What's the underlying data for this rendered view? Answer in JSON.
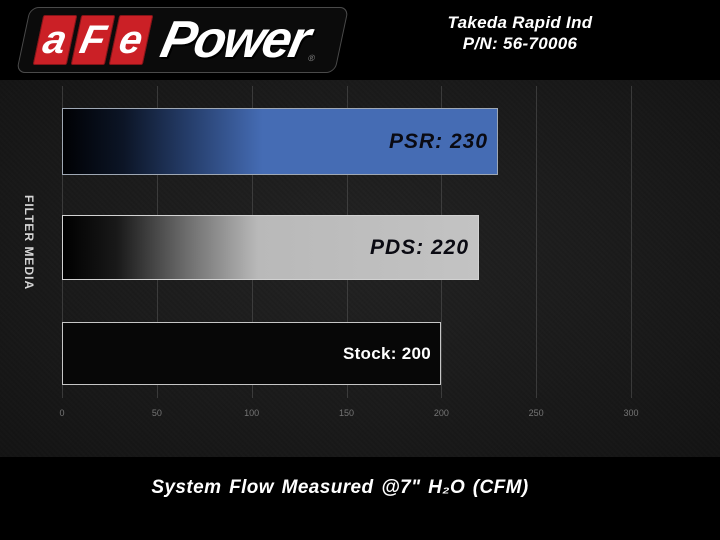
{
  "header": {
    "logo": {
      "letters": [
        "a",
        "F",
        "e"
      ],
      "wordmark": "Power",
      "registered": "®"
    },
    "product": {
      "line1": "Takeda Rapid Ind",
      "line2": "P/N: 56-70006"
    }
  },
  "chart": {
    "y_axis_label": "FILTER MEDIA",
    "caption": "System Flow Measured @7\" H₂O (CFM)"
  },
  "chart_data": {
    "type": "bar",
    "orientation": "horizontal",
    "title": "",
    "categories": [
      "PSR",
      "PDS",
      "Stock"
    ],
    "values": [
      230,
      220,
      200
    ],
    "bar_labels": [
      "PSR: 230",
      "PDS: 220",
      "Stock: 200"
    ],
    "bar_colors": [
      "#456cb4",
      "#b9b9b9",
      "#070707"
    ],
    "xticks": [
      "0",
      "50",
      "100",
      "150",
      "200",
      "250",
      "300"
    ],
    "xlim": [
      0,
      300
    ],
    "xlabel": "System Flow Measured @7\" H₂O (CFM)",
    "ylabel": "FILTER MEDIA",
    "grid": true,
    "legend": false
  },
  "colors": {
    "accent_red": "#cb2026",
    "bar_blue": "#456cb4",
    "bar_gray": "#b9b9b9",
    "bar_black": "#070707",
    "page_background": "#000000",
    "chart_background": "#1a1a1a"
  }
}
